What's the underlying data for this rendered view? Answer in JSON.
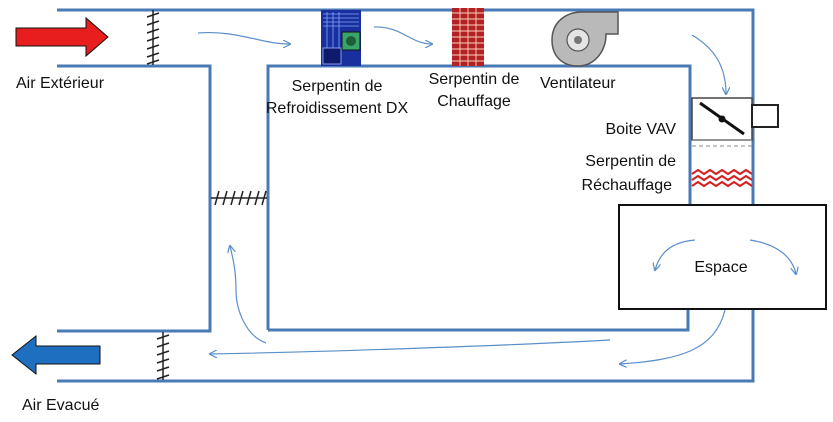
{
  "labels": {
    "outside_air": "Air Extérieur",
    "exhaust_air": "Air Evacué",
    "dx_coil_line1": "Serpentin de",
    "dx_coil_line2": "Refroidissement DX",
    "heating_coil_line1": "Serpentin de",
    "heating_coil_line2": "Chauffage",
    "fan": "Ventilateur",
    "vav_box": "Boite VAV",
    "reheat_coil_line1": "Serpentin de",
    "reheat_coil_line2": "Réchauffage",
    "space": "Espace"
  },
  "colors": {
    "duct": "#4a7ab5",
    "outside_air_arrow": "#e81e1e",
    "exhaust_air_arrow": "#1f6fc0",
    "flow_arrow": "#5a8fc8",
    "reheat_coil": "#d42020",
    "heating_coil": "#b22222",
    "dx_coil": "#1a2f9e"
  }
}
